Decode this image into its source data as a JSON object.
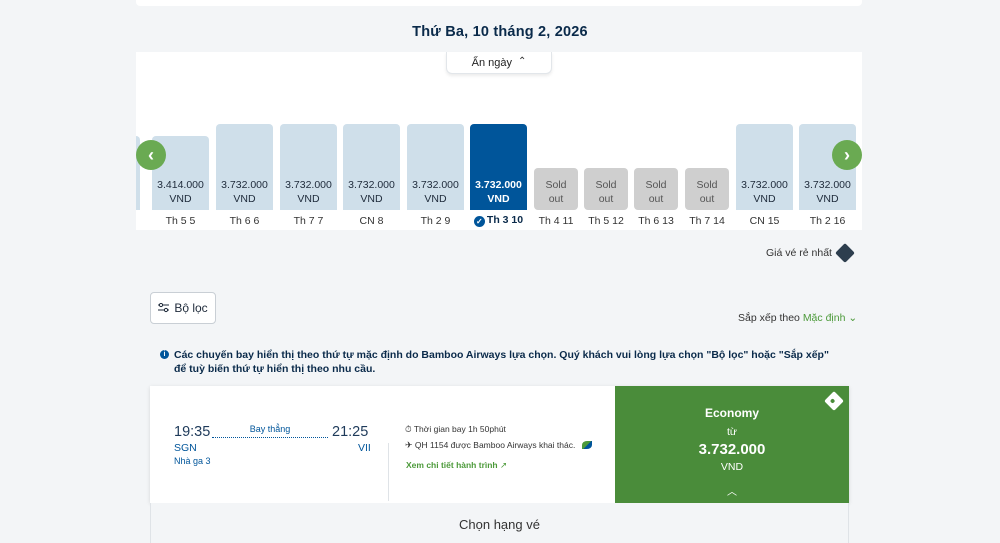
{
  "date_title": "Thứ Ba, 10 tháng 2, 2026",
  "hide_dates_label": "Ẩn ngày",
  "calendar": [
    {
      "price": "3.414.000",
      "currency": "VND",
      "label": "Th 5 5",
      "status": "price"
    },
    {
      "price": "3.732.000",
      "currency": "VND",
      "label": "Th 6 6",
      "status": "price"
    },
    {
      "price": "3.732.000",
      "currency": "VND",
      "label": "Th 7 7",
      "status": "price"
    },
    {
      "price": "3.732.000",
      "currency": "VND",
      "label": "CN 8",
      "status": "price"
    },
    {
      "price": "3.732.000",
      "currency": "VND",
      "label": "Th 2 9",
      "status": "price"
    },
    {
      "price": "3.732.000",
      "currency": "VND",
      "label": "Th 3 10",
      "status": "selected"
    },
    {
      "price": "Sold",
      "currency": "out",
      "label": "Th 4 11",
      "status": "sold"
    },
    {
      "price": "Sold",
      "currency": "out",
      "label": "Th 5 12",
      "status": "sold"
    },
    {
      "price": "Sold",
      "currency": "out",
      "label": "Th 6 13",
      "status": "sold"
    },
    {
      "price": "Sold",
      "currency": "out",
      "label": "Th 7 14",
      "status": "sold"
    },
    {
      "price": "3.732.000",
      "currency": "VND",
      "label": "CN 15",
      "status": "price"
    },
    {
      "price": "3.732.000",
      "currency": "VND",
      "label": "Th 2 16",
      "status": "price"
    }
  ],
  "partial_left_text": "0",
  "cheapest_label": "Giá vé rẻ nhất",
  "filter_label": "Bộ lọc",
  "sort_label": "Sắp xếp theo",
  "sort_value": "Mặc định",
  "notice": "Các chuyến bay hiển thị theo thứ tự mặc định do Bamboo Airways lựa chọn. Quý khách vui lòng lựa chọn \"Bộ lọc\" hoặc \"Sắp xếp\" để tuỳ biến thứ tự hiển thị theo nhu cầu.",
  "flight": {
    "depart_time": "19:35",
    "arrive_time": "21:25",
    "depart_code": "SGN",
    "arrive_code": "VII",
    "terminal": "Nhà ga 3",
    "route_type": "Bay thẳng",
    "duration": "Thời gian bay  1h 50phút",
    "operator": "QH 1154 được Bamboo Airways khai thác.",
    "details_link": "Xem chi tiết hành trình"
  },
  "economy": {
    "title": "Economy",
    "from": "từ",
    "price": "3.732.000",
    "currency": "VND"
  },
  "fare_title": "Chọn hạng vé",
  "colors": {
    "accent_green": "#4a8c3a",
    "brand_blue": "#00559a",
    "price_bar": "#cfdfea",
    "sold_bar": "#cfcfcf"
  }
}
